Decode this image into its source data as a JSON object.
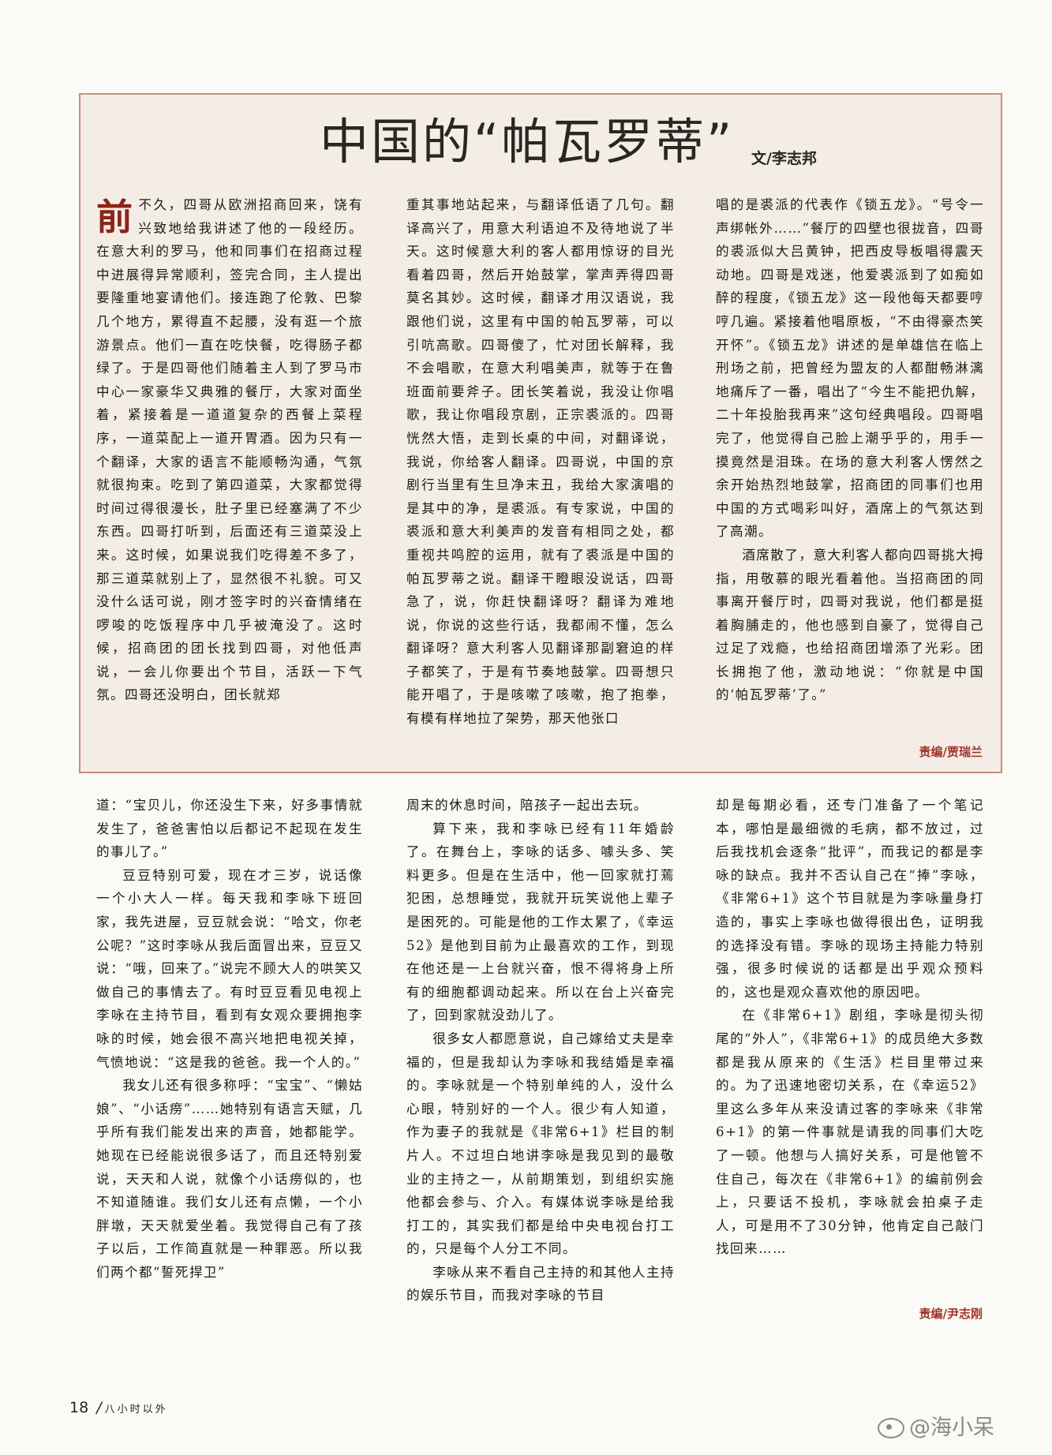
{
  "article": {
    "title": "中国的“帕瓦罗蒂”",
    "byline": "文/李志邦",
    "dropcap": "前",
    "columns": [
      [
        "不久，四哥从欧洲招商回来，饶有兴致地给我讲述了他的一段经历。在意大利的罗马，他和同事们在招商过程中进展得异常顺利，签完合同，主人提出要隆重地宴请他们。接连跑了伦敦、巴黎几个地方，累得直不起腰，没有逛一个旅游景点。他们一直在吃快餐，吃得肠子都绿了。于是四哥他们随着主人到了罗马市中心一家豪华又典雅的餐厅，大家对面坐着，紧接着是一道道复杂的西餐上菜程序，一道菜配上一道开胃酒。因为只有一个翻译，大家的语言不能顺畅沟通，气氛就很拘束。吃到了第四道菜，大家都觉得时间过得很漫长，肚子里已经塞满了不少东西。四哥打听到，后面还有三道菜没上来。这时候，如果说我们吃得差不多了，那三道菜就别上了，显然很不礼貌。可又没什么话可说，刚才签字时的兴奋情绪在啰唆的吃饭程序中几乎被淹没了。这时候，招商团的团长找到四哥，对他低声说，一会儿你要出个节目，活跃一下气氛。四哥还没明白，团长就郑"
      ],
      [
        "重其事地站起来，与翻译低语了几句。翻译高兴了，用意大利语迫不及待地说了半天。这时候意大利的客人都用惊讶的目光看着四哥，然后开始鼓掌，掌声弄得四哥莫名其妙。这时候，翻译才用汉语说，我跟他们说，这里有中国的帕瓦罗蒂，可以引吭高歌。四哥傻了，忙对团长解释，我不会唱歌，在意大利唱美声，就等于在鲁班面前要斧子。团长笑着说，我没让你唱歌，我让你唱段京剧，正宗裘派的。四哥恍然大悟，走到长桌的中间，对翻译说，我说，你给客人翻译。四哥说，中国的京剧行当里有生旦净末丑，我给大家演唱的是其中的净，是裘派。有专家说，中国的裘派和意大利美声的发音有相同之处，都重视共鸣腔的运用，就有了裘派是中国的帕瓦罗蒂之说。翻译干瞪眼没说话，四哥急了，说，你赶快翻译呀？翻译为难地说，你说的这些行话，我都闹不懂，怎么翻译呀？意大利客人见翻译那副窘迫的样子都笑了，于是有节奏地鼓掌。四哥想只能开唱了，于是咳嗽了咳嗽，抱了抱拳，有模有样地拉了架势，那天他张口"
      ],
      [
        "唱的是裘派的代表作《锁五龙》。“号令一声绑帐外……”餐厅的四壁也很拢音，四哥的裘派似大吕黄钟，把西皮导板唱得震天动地。四哥是戏迷，他爱裘派到了如痴如醉的程度，《锁五龙》这一段他每天都要哼哼几遍。紧接着他唱原板，“不由得豪杰笑开怀”。《锁五龙》讲述的是单雄信在临上刑场之前，把曾经为盟友的人都酣畅淋漓地痛斥了一番，唱出了“今生不能把仇解，二十年投胎我再来”这句经典唱段。四哥唱完了，他觉得自己脸上潮乎乎的，用手一摸竟然是泪珠。在场的意大利客人愣然之余开始热烈地鼓掌，招商团的同事们也用中国的方式喝彩叫好，酒席上的气氛达到了高潮。",
        "酒席散了，意大利客人都向四哥挑大拇指，用敬慕的眼光看着他。当招商团的同事离开餐厅时，四哥对我说，他们都是挺着胸脯走的，他也感到自豪了，觉得自己过足了戏瘾，也给招商团增添了光彩。团长拥抱了他，激动地说：“你就是中国的‘帕瓦罗蒂’了。”"
      ]
    ],
    "editor": "责编/贾瑞兰"
  },
  "continuation": {
    "columns": [
      [
        "道：“宝贝儿，你还没生下来，好多事情就发生了，爸爸害怕以后都记不起现在发生的事儿了。”",
        "豆豆特别可爱，现在才三岁，说话像一个小大人一样。每天我和李咏下班回家，我先进屋，豆豆就会说：“哈文，你老公呢？”这时李咏从我后面冒出来，豆豆又说：“哦，回来了。”说完不顾大人的哄笑又做自己的事情去了。有时豆豆看见电视上李咏在主持节目，看到有女观众要拥抱李咏的时候，她会很不高兴地把电视关掉，气愤地说：“这是我的爸爸。我一个人的。”",
        "我女儿还有很多称呼：“宝宝”、“懒姑娘”、“小话痨”……她特别有语言天赋，几乎所有我们能发出来的声音，她都能学。她现在已经能说很多话了，而且还特别爱说，天天和人说，就像个小话痨似的，也不知道随谁。我们女儿还有点懒，一个小胖墩，天天就爱坐着。我觉得自己有了孩子以后，工作简直就是一种罪恶。所以我们两个都“誓死捍卫”"
      ],
      [
        "周末的休息时间，陪孩子一起出去玩。",
        "算下来，我和李咏已经有11年婚龄了。在舞台上，李咏的话多、噱头多、笑料更多。但是在生活中，他一回家就打蔫犯困，总想睡觉，我就开玩笑说他上辈子是困死的。可能是他的工作太累了，《幸运52》是他到目前为止最喜欢的工作，到现在他还是一上台就兴奋，恨不得将身上所有的细胞都调动起来。所以在台上兴奋完了，回到家就没劲儿了。",
        "很多女人都愿意说，自己嫁给丈夫是幸福的，但是我却认为李咏和我结婚是幸福的。李咏就是一个特别单纯的人，没什么心眼，特别好的一个人。很少有人知道，作为妻子的我就是《非常6+1》栏目的制片人。不过坦白地讲李咏是我见到的最敬业的主持之一，从前期策划，到组织实施他都会参与、介入。有媒体说李咏是给我打工的，其实我们都是给中央电视台打工的，只是每个人分工不同。",
        "李咏从来不看自己主持的和其他人主持的娱乐节目，而我对李咏的节目"
      ],
      [
        "却是每期必看，还专门准备了一个笔记本，哪怕是最细微的毛病，都不放过，过后我找机会逐条“批评”，而我记的都是李咏的缺点。我并不否认自己在“捧”李咏，《非常6+1》这个节目就是为李咏量身打造的，事实上李咏也做得很出色，证明我的选择没有错。李咏的现场主持能力特别强，很多时候说的话都是出乎观众预料的，这也是观众喜欢他的原因吧。",
        "在《非常6+1》剧组，李咏是彻头彻尾的“外人”，《非常6+1》的成员绝大多数都是我从原来的《生活》栏目里带过来的。为了迅速地密切关系，在《幸运52》里这么多年从来没请过客的李咏来《非常6+1》的第一件事就是请我的同事们大吃了一顿。他想与人搞好关系，可是他管不住自己，每次在《非常6+1》的编前例会上，只要话不投机，李咏就会拍桌子走人，可是用不了30分钟，他肯定自己敲门找回来……"
      ]
    ],
    "editor": "责编/尹志刚"
  },
  "footer": {
    "page_number": "18",
    "separator": "/",
    "magazine": "八小时以外"
  },
  "watermark": {
    "text": "@海小呆",
    "icon": "weibo-icon"
  },
  "colors": {
    "box_border": "#c98f7a",
    "box_background": "#f4ede6",
    "dropcap": "#8c2418",
    "editor_credit": "#a0352a"
  }
}
